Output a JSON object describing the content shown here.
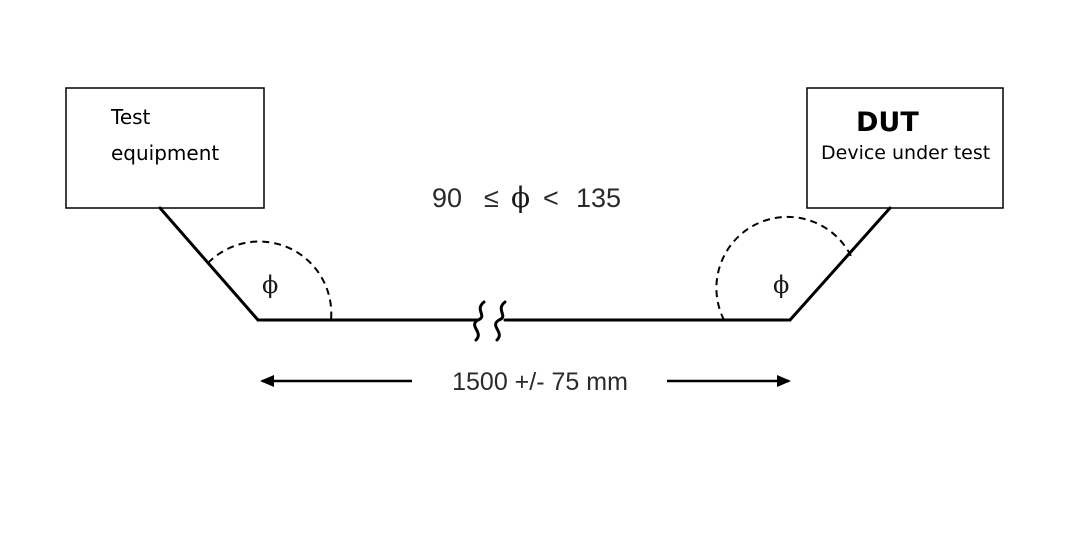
{
  "left_box": {
    "line1": "Test",
    "line2": "equipment"
  },
  "right_box": {
    "title": "DUT",
    "subtitle": "Device under test"
  },
  "angle_condition": {
    "low": "90",
    "le_symbol": "≤",
    "phi": "ϕ",
    "lt_symbol": "<",
    "high": "135"
  },
  "angle_labels": {
    "left": "ϕ",
    "right": "ϕ"
  },
  "dimension": {
    "label": "1500 +/- 75 mm"
  },
  "colors": {
    "line": "#000000",
    "text": "#2a2a2a"
  }
}
